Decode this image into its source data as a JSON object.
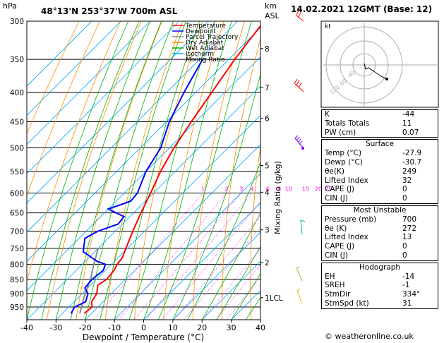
{
  "header": {
    "location": "48°13'N  253°37'W  700m  ASL",
    "datetime": "14.02.2021  12GMT  (Base: 12)",
    "hpa_label": "hPa",
    "km_label": "km",
    "asl_label": "ASL"
  },
  "chart_data": {
    "type": "skew-t",
    "xlabel": "Dewpoint / Temperature (°C)",
    "right_axis_label": "Mixing Ratio (g/kg)",
    "x_ticks": [
      -40,
      -30,
      -20,
      -10,
      0,
      10,
      20,
      30,
      40
    ],
    "pressure_levels": [
      300,
      350,
      400,
      450,
      500,
      550,
      600,
      650,
      700,
      750,
      800,
      850,
      900,
      950
    ],
    "km_ticks": [
      {
        "label": "8",
        "p": 335
      },
      {
        "label": "7",
        "p": 392
      },
      {
        "label": "6",
        "p": 444
      },
      {
        "label": "5",
        "p": 537
      },
      {
        "label": "4",
        "p": 598
      },
      {
        "label": "3",
        "p": 696
      },
      {
        "label": "2",
        "p": 794
      },
      {
        "label": "1LCL",
        "p": 915
      }
    ],
    "mixing_ratio_labels": [
      "1",
      "2",
      "3",
      "4",
      "6",
      "8",
      "10",
      "15",
      "20",
      "25"
    ],
    "mixing_ratio_values": [
      1,
      2,
      3,
      4,
      6,
      8,
      10,
      15,
      20,
      25
    ],
    "legend": [
      {
        "name": "Temperature",
        "color": "#ff0000",
        "style": "solid"
      },
      {
        "name": "Dewpoint",
        "color": "#0000ff",
        "style": "solid"
      },
      {
        "name": "Parcel Trajectory",
        "color": "#888888",
        "style": "solid"
      },
      {
        "name": "Dry Adiabat",
        "color": "#ff8c00",
        "style": "solid"
      },
      {
        "name": "Wet Adiabat",
        "color": "#00b000",
        "style": "solid"
      },
      {
        "name": "Isotherm",
        "color": "#00aaff",
        "style": "solid"
      },
      {
        "name": "Mixing Ratio",
        "color": "#ff00ff",
        "style": "dotted"
      }
    ],
    "temperature": [
      {
        "p": 975,
        "t": -22.5
      },
      {
        "p": 950,
        "t": -22
      },
      {
        "p": 930,
        "t": -24
      },
      {
        "p": 900,
        "t": -25
      },
      {
        "p": 870,
        "t": -27.5
      },
      {
        "p": 850,
        "t": -26.5
      },
      {
        "p": 820,
        "t": -27
      },
      {
        "p": 800,
        "t": -28
      },
      {
        "p": 780,
        "t": -28.5
      },
      {
        "p": 750,
        "t": -30.5
      },
      {
        "p": 700,
        "t": -34
      },
      {
        "p": 650,
        "t": -37.5
      },
      {
        "p": 600,
        "t": -41
      },
      {
        "p": 550,
        "t": -45
      },
      {
        "p": 500,
        "t": -48.5
      },
      {
        "p": 450,
        "t": -51.5
      },
      {
        "p": 400,
        "t": -54.5
      },
      {
        "p": 350,
        "t": -58
      },
      {
        "p": 300,
        "t": -61
      }
    ],
    "dewpoint": [
      {
        "p": 975,
        "t": -27
      },
      {
        "p": 950,
        "t": -28
      },
      {
        "p": 930,
        "t": -26
      },
      {
        "p": 900,
        "t": -28
      },
      {
        "p": 880,
        "t": -31
      },
      {
        "p": 850,
        "t": -31.5
      },
      {
        "p": 820,
        "t": -30.7
      },
      {
        "p": 800,
        "t": -32
      },
      {
        "p": 790,
        "t": -36
      },
      {
        "p": 760,
        "t": -44
      },
      {
        "p": 720,
        "t": -48
      },
      {
        "p": 700,
        "t": -46
      },
      {
        "p": 680,
        "t": -41.5
      },
      {
        "p": 660,
        "t": -42
      },
      {
        "p": 640,
        "t": -50
      },
      {
        "p": 620,
        "t": -45
      },
      {
        "p": 600,
        "t": -45.5
      },
      {
        "p": 550,
        "t": -50
      },
      {
        "p": 500,
        "t": -53
      },
      {
        "p": 450,
        "t": -59
      },
      {
        "p": 400,
        "t": -64
      },
      {
        "p": 350,
        "t": -69
      }
    ],
    "parcel": [
      {
        "p": 975,
        "t": -24
      },
      {
        "p": 915,
        "t": -28
      },
      {
        "p": 850,
        "t": -32
      },
      {
        "p": 800,
        "t": -36
      },
      {
        "p": 750,
        "t": -40
      }
    ],
    "xlim": [
      -40,
      40
    ],
    "plim": [
      300,
      1000
    ],
    "skew": "45 degrees"
  },
  "hodograph": {
    "label": "kt",
    "ring_labels": [
      "40",
      "60",
      "120"
    ]
  },
  "indices": [
    {
      "label": "K",
      "value": "-44"
    },
    {
      "label": "Totals Totals",
      "value": "11"
    },
    {
      "label": "PW (cm)",
      "value": "0.07"
    }
  ],
  "surface": {
    "title": "Surface",
    "rows": [
      {
        "label": "Temp (°C)",
        "value": "-27.9"
      },
      {
        "label": "Dewp (°C)",
        "value": "-30.7"
      },
      {
        "label": "θe(K)",
        "value": "249"
      },
      {
        "label": "Lifted Index",
        "value": "32"
      },
      {
        "label": "CAPE (J)",
        "value": "0"
      },
      {
        "label": "CIN (J)",
        "value": "0"
      }
    ]
  },
  "most_unstable": {
    "title": "Most Unstable",
    "rows": [
      {
        "label": "Pressure (mb)",
        "value": "700"
      },
      {
        "label": "θe (K)",
        "value": "272"
      },
      {
        "label": "Lifted Index",
        "value": "13"
      },
      {
        "label": "CAPE (J)",
        "value": "0"
      },
      {
        "label": "CIN (J)",
        "value": "0"
      }
    ]
  },
  "hodograph_table": {
    "title": "Hodograph",
    "rows": [
      {
        "label": "EH",
        "value": "-14"
      },
      {
        "label": "SREH",
        "value": "-1"
      },
      {
        "label": "StmDir",
        "value": "334°"
      },
      {
        "label": "StmSpd (kt)",
        "value": "31"
      }
    ]
  },
  "footer": "© weatheronline.co.uk"
}
